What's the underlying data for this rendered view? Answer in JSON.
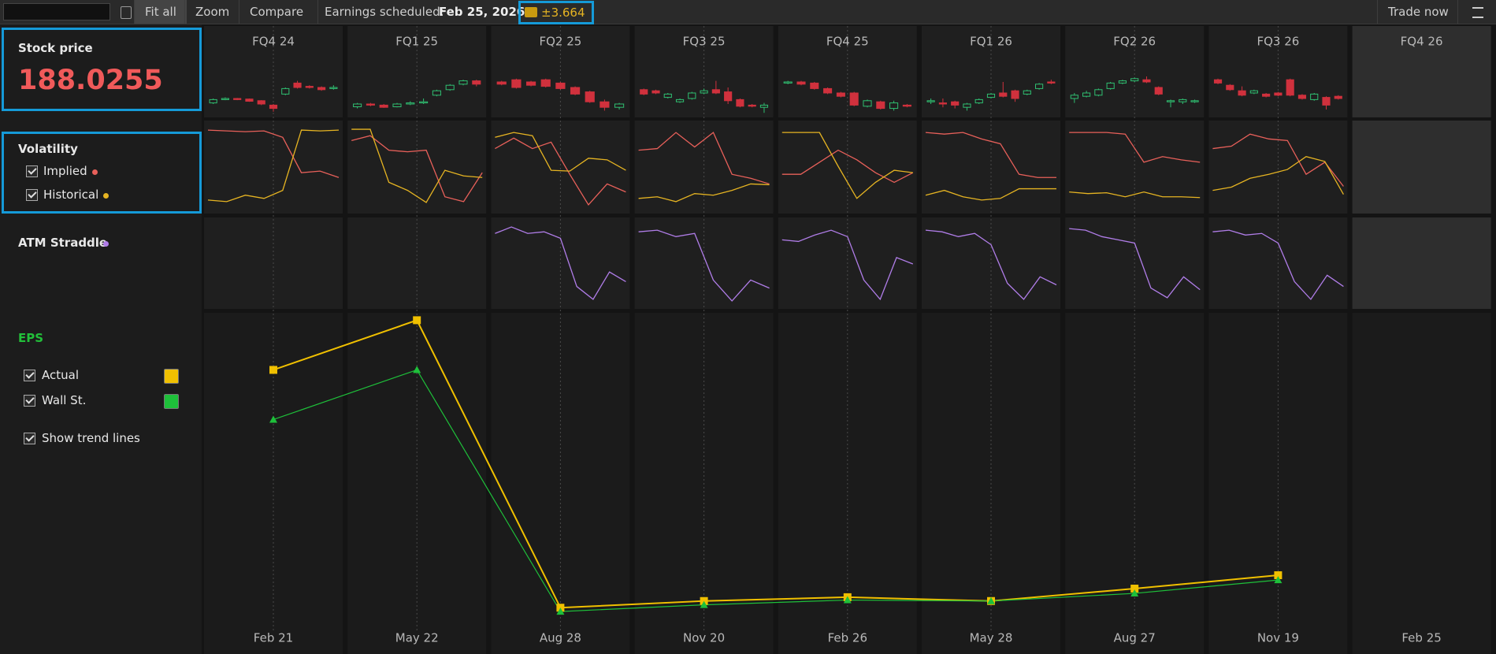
{
  "toolbar": {
    "buttons": [
      "Fit all",
      "Zoom",
      "Compare"
    ],
    "earnings_label": "Earnings scheduled:",
    "earnings_date": "Feb 25, 2026",
    "expected_move": "±3.664",
    "trade_button": "Trade now"
  },
  "stock_price": {
    "label": "Stock price",
    "value": 188.0255,
    "up_color": "#2fbf71",
    "down_color": "#d0313d"
  },
  "volatility": {
    "title": "Volatility",
    "implied": {
      "name": "Implied",
      "color": "#e8605a"
    },
    "historical": {
      "name": "Historical",
      "color": "#e6b422"
    }
  },
  "straddle": {
    "title": "ATM Straddle",
    "color": "#b07de8"
  },
  "panel_ylim": [
    0,
    100
  ],
  "quarters": [
    {
      "label": "FQ4 24",
      "date": "Feb 21",
      "candles": [
        [
          22,
          28,
          30,
          20
        ],
        [
          28,
          30,
          32,
          27
        ],
        [
          30,
          28,
          31,
          27
        ],
        [
          29,
          25,
          30,
          24
        ],
        [
          26,
          20,
          27,
          18
        ],
        [
          18,
          12,
          20,
          6
        ],
        [
          38,
          48,
          50,
          36
        ],
        [
          58,
          50,
          62,
          48
        ],
        [
          52,
          50,
          54,
          48
        ],
        [
          50,
          46,
          52,
          44
        ],
        [
          48,
          50,
          54,
          46
        ]
      ],
      "implied": [
        95,
        94,
        93,
        94,
        86,
        42,
        44,
        36
      ],
      "historical": [
        8,
        6,
        14,
        10,
        20,
        95,
        94,
        95
      ]
    },
    {
      "label": "FQ1 25",
      "date": "May 22",
      "candles": [
        [
          15,
          20,
          22,
          12
        ],
        [
          20,
          18,
          22,
          16
        ],
        [
          18,
          14,
          20,
          13
        ],
        [
          15,
          20,
          22,
          14
        ],
        [
          20,
          22,
          25,
          18
        ],
        [
          22,
          24,
          30,
          20
        ],
        [
          36,
          44,
          46,
          34
        ],
        [
          46,
          54,
          56,
          44
        ],
        [
          56,
          62,
          64,
          54
        ],
        [
          62,
          56,
          64,
          52
        ]
      ],
      "implied": [
        82,
        88,
        70,
        68,
        70,
        12,
        6,
        42
      ],
      "historical": [
        96,
        96,
        30,
        20,
        5,
        45,
        38,
        36
      ]
    },
    {
      "label": "FQ2 25",
      "date": "Aug 28",
      "candles": [
        [
          60,
          56,
          62,
          54
        ],
        [
          64,
          50,
          66,
          48
        ],
        [
          60,
          54,
          62,
          52
        ],
        [
          64,
          52,
          66,
          50
        ],
        [
          58,
          48,
          60,
          46
        ],
        [
          50,
          38,
          52,
          36
        ],
        [
          42,
          24,
          44,
          22
        ],
        [
          24,
          14,
          28,
          8
        ],
        [
          14,
          20,
          22,
          10
        ]
      ],
      "implied": [
        72,
        85,
        72,
        80,
        40,
        2,
        28,
        18
      ],
      "historical": [
        86,
        92,
        88,
        45,
        44,
        60,
        58,
        45
      ],
      "straddle": [
        88,
        96,
        88,
        90,
        82,
        22,
        6,
        40,
        28
      ]
    },
    {
      "label": "FQ3 25",
      "date": "Nov 20",
      "candles": [
        [
          46,
          38,
          48,
          36
        ],
        [
          44,
          40,
          46,
          38
        ],
        [
          32,
          38,
          40,
          30
        ],
        [
          24,
          28,
          30,
          22
        ],
        [
          30,
          40,
          42,
          28
        ],
        [
          40,
          44,
          48,
          38
        ],
        [
          46,
          40,
          62,
          38
        ],
        [
          42,
          26,
          50,
          20
        ],
        [
          28,
          16,
          30,
          14
        ],
        [
          18,
          16,
          20,
          14
        ],
        [
          14,
          18,
          22,
          4
        ]
      ],
      "implied": [
        70,
        72,
        92,
        74,
        92,
        40,
        35,
        28
      ],
      "historical": [
        10,
        12,
        6,
        16,
        14,
        20,
        28,
        27
      ],
      "straddle": [
        90,
        92,
        84,
        88,
        30,
        4,
        30,
        20
      ]
    },
    {
      "label": "FQ4 25",
      "date": "Feb 26",
      "candles": [
        [
          58,
          60,
          62,
          56
        ],
        [
          60,
          56,
          62,
          54
        ],
        [
          58,
          48,
          60,
          46
        ],
        [
          48,
          40,
          50,
          38
        ],
        [
          40,
          34,
          42,
          32
        ],
        [
          40,
          18,
          42,
          16
        ],
        [
          16,
          26,
          28,
          14
        ],
        [
          24,
          12,
          26,
          10
        ],
        [
          12,
          22,
          26,
          8
        ],
        [
          18,
          16,
          20,
          14
        ]
      ],
      "implied": [
        40,
        40,
        55,
        70,
        58,
        42,
        30,
        42
      ],
      "historical": [
        92,
        92,
        92,
        50,
        10,
        30,
        45,
        42
      ],
      "straddle": [
        80,
        78,
        86,
        92,
        84,
        30,
        6,
        58,
        50
      ]
    },
    {
      "label": "FQ1 26",
      "date": "May 28",
      "candles": [
        [
          24,
          26,
          30,
          20
        ],
        [
          22,
          20,
          30,
          14
        ],
        [
          24,
          18,
          26,
          12
        ],
        [
          14,
          20,
          22,
          8
        ],
        [
          22,
          28,
          30,
          20
        ],
        [
          32,
          38,
          40,
          30
        ],
        [
          40,
          34,
          60,
          32
        ],
        [
          44,
          30,
          46,
          24
        ],
        [
          38,
          44,
          46,
          36
        ],
        [
          48,
          56,
          58,
          46
        ],
        [
          60,
          58,
          64,
          56
        ]
      ],
      "implied": [
        92,
        90,
        92,
        84,
        78,
        40,
        36,
        36
      ],
      "historical": [
        14,
        20,
        12,
        8,
        10,
        22,
        22,
        22
      ],
      "straddle": [
        92,
        90,
        84,
        88,
        74,
        26,
        6,
        34,
        24
      ]
    },
    {
      "label": "FQ2 26",
      "date": "Aug 27",
      "candles": [
        [
          30,
          36,
          40,
          22
        ],
        [
          34,
          40,
          44,
          32
        ],
        [
          36,
          46,
          48,
          34
        ],
        [
          48,
          58,
          60,
          46
        ],
        [
          58,
          62,
          64,
          56
        ],
        [
          62,
          66,
          68,
          60
        ],
        [
          64,
          60,
          70,
          58
        ],
        [
          50,
          38,
          52,
          36
        ],
        [
          24,
          26,
          28,
          14
        ],
        [
          24,
          28,
          30,
          20
        ],
        [
          24,
          26,
          28,
          22
        ]
      ],
      "implied": [
        92,
        92,
        92,
        90,
        55,
        62,
        58,
        55
      ],
      "historical": [
        18,
        16,
        17,
        12,
        18,
        12,
        12,
        11
      ],
      "straddle": [
        94,
        92,
        84,
        80,
        76,
        20,
        8,
        34,
        18
      ]
    },
    {
      "label": "FQ3 26",
      "date": "Nov 19",
      "candles": [
        [
          64,
          58,
          66,
          56
        ],
        [
          54,
          46,
          56,
          44
        ],
        [
          44,
          36,
          52,
          34
        ],
        [
          40,
          44,
          46,
          38
        ],
        [
          38,
          34,
          40,
          32
        ],
        [
          40,
          36,
          42,
          34
        ],
        [
          64,
          36,
          66,
          34
        ],
        [
          36,
          30,
          38,
          28
        ],
        [
          28,
          38,
          40,
          26
        ],
        [
          32,
          18,
          34,
          10
        ],
        [
          34,
          30,
          36,
          28
        ]
      ],
      "implied": [
        72,
        75,
        90,
        84,
        82,
        40,
        55,
        25
      ],
      "historical": [
        20,
        24,
        35,
        40,
        46,
        62,
        56,
        15
      ],
      "straddle": [
        90,
        92,
        86,
        88,
        76,
        28,
        6,
        36,
        22
      ]
    },
    {
      "label": "FQ4 26",
      "date": "Feb 25"
    }
  ],
  "eps": {
    "title": "EPS",
    "ylim": [
      0,
      3.3
    ],
    "series": [
      {
        "name": "Actual",
        "color": "#f0c000",
        "values": [
          2.62,
          3.14,
          0.13,
          0.2,
          0.24,
          0.2,
          0.33,
          0.47
        ]
      },
      {
        "name": "Wall St.",
        "color": "#1ec03a",
        "values": [
          2.1,
          2.62,
          0.09,
          0.16,
          0.21,
          0.2,
          0.28,
          0.42
        ]
      }
    ],
    "trend_lines": "Show trend lines"
  }
}
